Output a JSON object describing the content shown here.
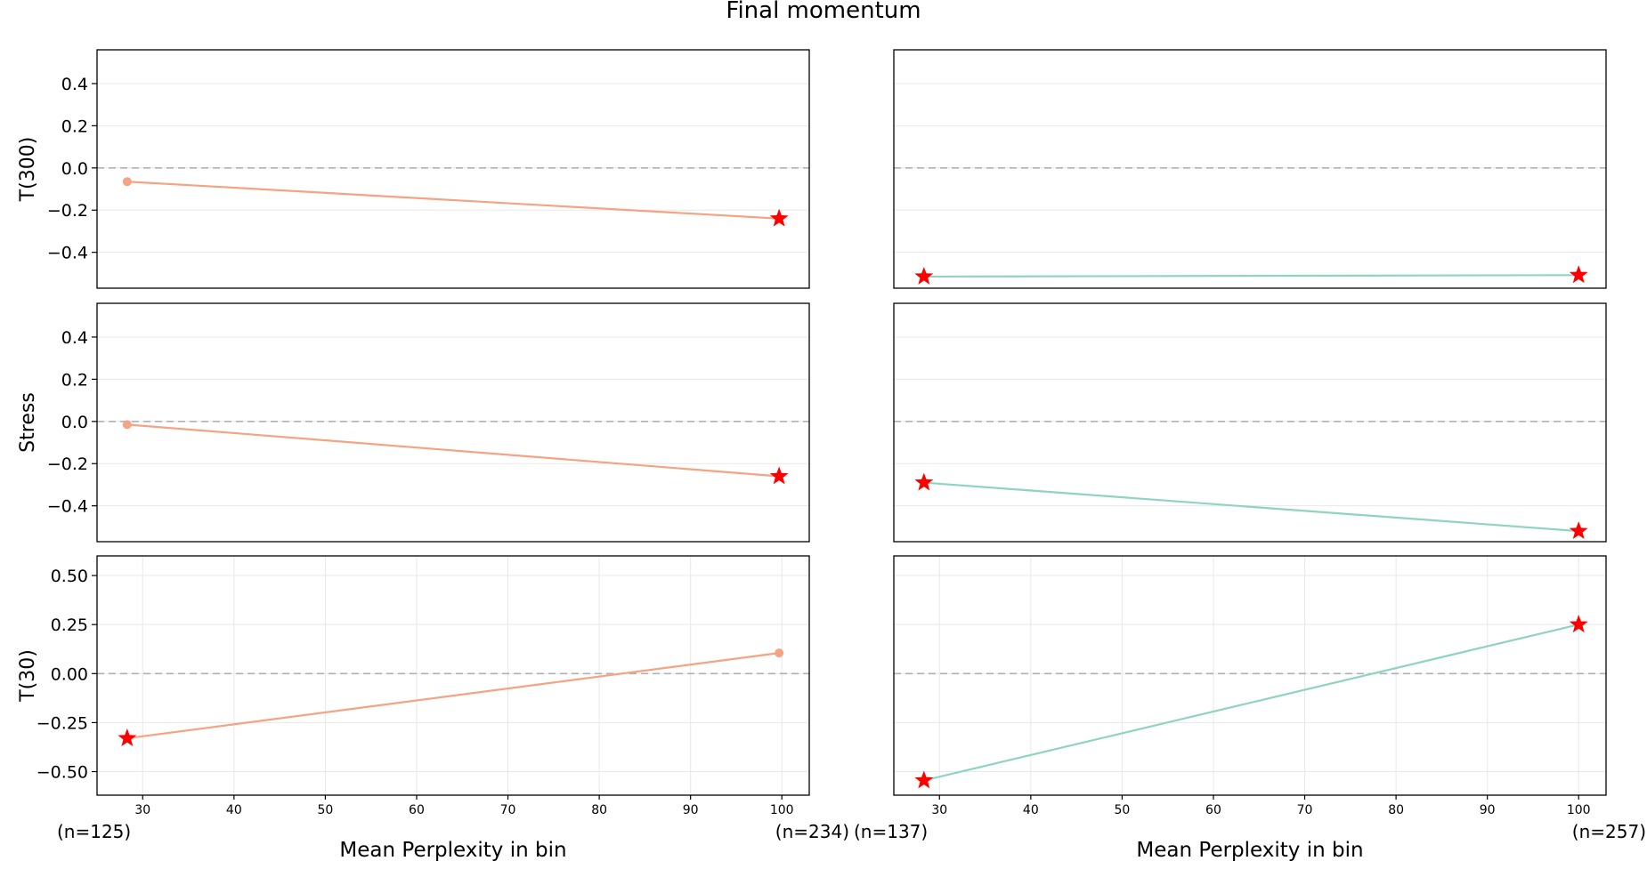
{
  "chart_data": {
    "type": "line",
    "title": "Final momentum",
    "xlabel": "Mean Perplexity in bin",
    "xlim": [
      25,
      103
    ],
    "xticks": [
      30,
      40,
      50,
      60,
      70,
      80,
      90,
      100
    ],
    "zero_line": true,
    "grid": true,
    "colors": {
      "left": "#f4a383",
      "right": "#8fd4c1",
      "star": "#ff0000",
      "zero_line": "#b0b0b8",
      "grid": "#e8e8e8"
    },
    "rows": [
      {
        "ylabel": "T(300)",
        "ylim": [
          -0.57,
          0.56
        ],
        "yticks": [
          0.4,
          0.2,
          0.0,
          -0.2,
          -0.4
        ],
        "tick_labels": [
          "0.4",
          "0.2",
          "0.0",
          "−0.2",
          "−0.4"
        ]
      },
      {
        "ylabel": "Stress",
        "ylim": [
          -0.57,
          0.56
        ],
        "yticks": [
          0.4,
          0.2,
          0.0,
          -0.2,
          -0.4
        ],
        "tick_labels": [
          "0.4",
          "0.2",
          "0.0",
          "−0.2",
          "−0.4"
        ]
      },
      {
        "ylabel": "T(30)",
        "ylim": [
          -0.62,
          0.6
        ],
        "yticks": [
          0.5,
          0.25,
          0.0,
          -0.25,
          -0.5
        ],
        "tick_labels": [
          "0.50",
          "0.25",
          "0.00",
          "−0.25",
          "−0.50"
        ]
      }
    ],
    "columns": [
      {
        "bin_counts": [
          "(n=125)",
          "(n=234)"
        ]
      },
      {
        "bin_counts": [
          "(n=137)",
          "(n=257)"
        ]
      }
    ],
    "panels": [
      {
        "row": 0,
        "col": 0,
        "x": [
          28.3,
          99.7
        ],
        "y": [
          -0.065,
          -0.24
        ],
        "significant": [
          false,
          true
        ]
      },
      {
        "row": 0,
        "col": 1,
        "x": [
          28.3,
          100.0
        ],
        "y": [
          -0.515,
          -0.508
        ],
        "significant": [
          true,
          true
        ]
      },
      {
        "row": 1,
        "col": 0,
        "x": [
          28.3,
          99.7
        ],
        "y": [
          -0.015,
          -0.26
        ],
        "significant": [
          false,
          true
        ]
      },
      {
        "row": 1,
        "col": 1,
        "x": [
          28.3,
          100.0
        ],
        "y": [
          -0.29,
          -0.52
        ],
        "significant": [
          true,
          true
        ]
      },
      {
        "row": 2,
        "col": 0,
        "x": [
          28.3,
          99.7
        ],
        "y": [
          -0.33,
          0.105
        ],
        "significant": [
          true,
          false
        ]
      },
      {
        "row": 2,
        "col": 1,
        "x": [
          28.3,
          100.0
        ],
        "y": [
          -0.545,
          0.25
        ],
        "significant": [
          true,
          true
        ]
      }
    ]
  }
}
